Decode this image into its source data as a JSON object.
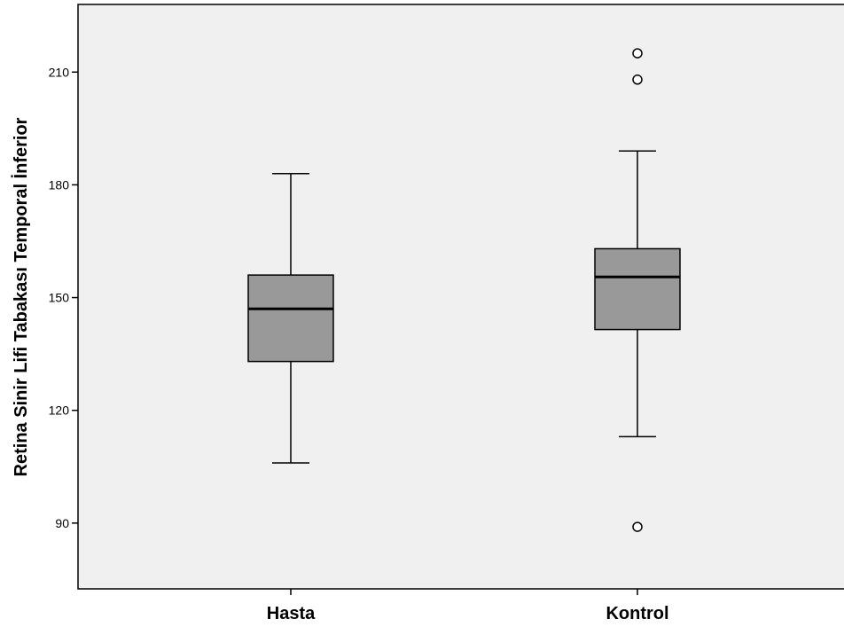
{
  "chart_data": {
    "type": "boxplot",
    "title": "",
    "xlabel": "",
    "ylabel": "Retina Sinir Lifi Tabakası Temporal İnferior",
    "ylim": [
      72.5,
      228
    ],
    "yticks": [
      90,
      120,
      150,
      180,
      210
    ],
    "grid": false,
    "colors": {
      "plot_bg": "#f0f0f0",
      "box_fill": "#999999",
      "line": "#000000"
    },
    "categories": [
      "Hasta",
      "Kontrol"
    ],
    "boxes": [
      {
        "category": "Hasta",
        "whisker_low": 106,
        "q1": 133,
        "median": 147,
        "q3": 156,
        "whisker_high": 183,
        "outliers": []
      },
      {
        "category": "Kontrol",
        "whisker_low": 113,
        "q1": 141.5,
        "median": 155.5,
        "q3": 163,
        "whisker_high": 189,
        "outliers": [
          89,
          208,
          215
        ]
      }
    ]
  }
}
